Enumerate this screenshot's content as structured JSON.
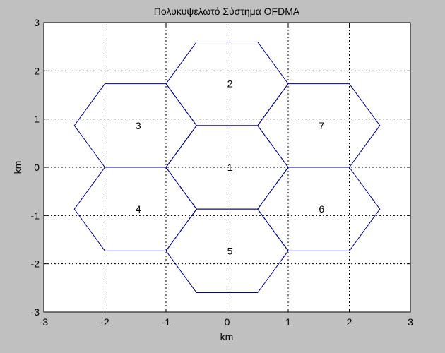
{
  "chart_data": {
    "type": "line",
    "title": "Πολυκυψελωτό Σύστημα OFDMA",
    "xlabel": "km",
    "ylabel": "km",
    "xlim": [
      -3,
      3
    ],
    "ylim": [
      -3,
      3
    ],
    "xticks": [
      -3,
      -2,
      -1,
      0,
      1,
      2,
      3
    ],
    "yticks": [
      -3,
      -2,
      -1,
      0,
      1,
      2,
      3
    ],
    "grid": true,
    "line_color": "#000080",
    "cells": [
      {
        "label": "1",
        "center": [
          0,
          0
        ],
        "radius": 1
      },
      {
        "label": "2",
        "center": [
          0,
          1.732
        ],
        "radius": 1
      },
      {
        "label": "3",
        "center": [
          -1.5,
          0.866
        ],
        "radius": 1
      },
      {
        "label": "4",
        "center": [
          -1.5,
          -0.866
        ],
        "radius": 1
      },
      {
        "label": "5",
        "center": [
          0,
          -1.732
        ],
        "radius": 1
      },
      {
        "label": "6",
        "center": [
          1.5,
          -0.866
        ],
        "radius": 1
      },
      {
        "label": "7",
        "center": [
          1.5,
          0.866
        ],
        "radius": 1
      }
    ]
  }
}
